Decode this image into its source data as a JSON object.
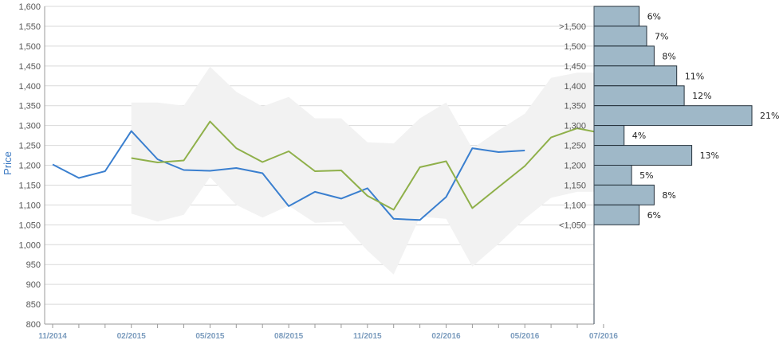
{
  "chart_data": {
    "type": "line",
    "ylabel": "Price",
    "ylim": [
      800,
      1600
    ],
    "yticks": [
      800,
      850,
      900,
      950,
      1000,
      1050,
      1100,
      1150,
      1200,
      1250,
      1300,
      1350,
      1400,
      1450,
      1500,
      1550,
      1600
    ],
    "x_tick_labels": [
      "11/2014",
      "02/2015",
      "05/2015",
      "08/2015",
      "11/2015",
      "02/2016",
      "05/2016",
      "07/2016"
    ],
    "x_tick_positions": [
      0,
      3,
      6,
      9,
      12,
      15,
      18,
      21
    ],
    "grid": "horizontal",
    "colors": {
      "actual": "#3a7fcf",
      "forecast": "#8fb04a",
      "band": "#f2f2f2",
      "hist_fill": "#9fb8c8",
      "hist_stroke": "#26323c"
    },
    "series": [
      {
        "key": "actual",
        "x": [
          0,
          1,
          2,
          3,
          4,
          5,
          6,
          7,
          8,
          9,
          10,
          11,
          12,
          13,
          14,
          15,
          16,
          17,
          18
        ],
        "values": [
          1202,
          1168,
          1185,
          1286,
          1215,
          1188,
          1186,
          1193,
          1180,
          1097,
          1133,
          1116,
          1142,
          1065,
          1062,
          1120,
          1243,
          1233,
          1237
        ]
      },
      {
        "key": "forecast",
        "x": [
          3,
          4,
          5,
          6,
          7,
          8,
          9,
          10,
          11,
          12,
          13,
          14,
          15,
          16,
          17,
          18,
          19,
          20,
          21
        ],
        "values": [
          1218,
          1207,
          1212,
          1310,
          1243,
          1208,
          1235,
          1185,
          1187,
          1123,
          1088,
          1195,
          1210,
          1092,
          1145,
          1198,
          1270,
          1293,
          1280
        ]
      }
    ],
    "band": {
      "x": [
        3,
        4,
        5,
        6,
        7,
        8,
        9,
        10,
        11,
        12,
        13,
        14,
        15,
        16,
        17,
        18,
        19,
        20,
        21
      ],
      "upper": [
        1358,
        1358,
        1350,
        1448,
        1385,
        1348,
        1372,
        1318,
        1318,
        1258,
        1255,
        1318,
        1358,
        1242,
        1288,
        1330,
        1420,
        1433,
        1433
      ],
      "lower": [
        1078,
        1058,
        1075,
        1170,
        1100,
        1068,
        1098,
        1055,
        1058,
        985,
        925,
        1070,
        1065,
        945,
        1002,
        1065,
        1118,
        1133,
        1133
      ]
    },
    "histogram": {
      "labels": [
        ">1,500",
        "1,500",
        "1,450",
        "1,400",
        "1,350",
        "1,300",
        "1,250",
        "1,200",
        "1,150",
        "1,100",
        "<1,050"
      ],
      "values": [
        6,
        7,
        8,
        11,
        12,
        21,
        4,
        13,
        5,
        8,
        6
      ],
      "value_labels": [
        "6%",
        "7%",
        "8%",
        "11%",
        "12%",
        "21%",
        "4%",
        "13%",
        "5%",
        "8%",
        "6%"
      ]
    }
  }
}
